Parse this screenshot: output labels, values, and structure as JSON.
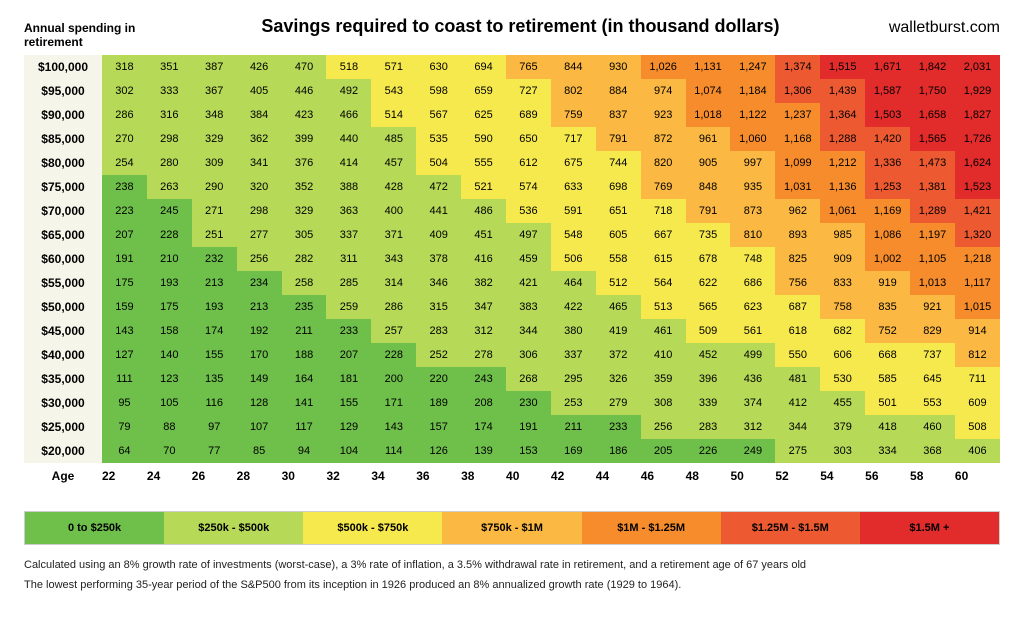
{
  "header": {
    "ylabel": "Annual spending in retirement",
    "title": "Savings required to coast to retirement (in thousand dollars)",
    "brand": "walletburst.com"
  },
  "axis": {
    "row_label": "Age",
    "ages": [
      22,
      24,
      26,
      28,
      30,
      32,
      34,
      36,
      38,
      40,
      42,
      44,
      46,
      48,
      50,
      52,
      54,
      56,
      58,
      60
    ],
    "spending": [
      100000,
      95000,
      90000,
      85000,
      80000,
      75000,
      70000,
      65000,
      60000,
      55000,
      50000,
      45000,
      40000,
      35000,
      30000,
      25000,
      20000
    ]
  },
  "values": [
    [
      318,
      351,
      387,
      426,
      470,
      518,
      571,
      630,
      694,
      765,
      844,
      930,
      1026,
      1131,
      1247,
      1374,
      1515,
      1671,
      1842,
      2031
    ],
    [
      302,
      333,
      367,
      405,
      446,
      492,
      543,
      598,
      659,
      727,
      802,
      884,
      974,
      1074,
      1184,
      1306,
      1439,
      1587,
      1750,
      1929
    ],
    [
      286,
      316,
      348,
      384,
      423,
      466,
      514,
      567,
      625,
      689,
      759,
      837,
      923,
      1018,
      1122,
      1237,
      1364,
      1503,
      1658,
      1827
    ],
    [
      270,
      298,
      329,
      362,
      399,
      440,
      485,
      535,
      590,
      650,
      717,
      791,
      872,
      961,
      1060,
      1168,
      1288,
      1420,
      1565,
      1726
    ],
    [
      254,
      280,
      309,
      341,
      376,
      414,
      457,
      504,
      555,
      612,
      675,
      744,
      820,
      905,
      997,
      1099,
      1212,
      1336,
      1473,
      1624
    ],
    [
      238,
      263,
      290,
      320,
      352,
      388,
      428,
      472,
      521,
      574,
      633,
      698,
      769,
      848,
      935,
      1031,
      1136,
      1253,
      1381,
      1523
    ],
    [
      223,
      245,
      271,
      298,
      329,
      363,
      400,
      441,
      486,
      536,
      591,
      651,
      718,
      791,
      873,
      962,
      1061,
      1169,
      1289,
      1421
    ],
    [
      207,
      228,
      251,
      277,
      305,
      337,
      371,
      409,
      451,
      497,
      548,
      605,
      667,
      735,
      810,
      893,
      985,
      1086,
      1197,
      1320
    ],
    [
      191,
      210,
      232,
      256,
      282,
      311,
      343,
      378,
      416,
      459,
      506,
      558,
      615,
      678,
      748,
      825,
      909,
      1002,
      1105,
      1218
    ],
    [
      175,
      193,
      213,
      234,
      258,
      285,
      314,
      346,
      382,
      421,
      464,
      512,
      564,
      622,
      686,
      756,
      833,
      919,
      1013,
      1117
    ],
    [
      159,
      175,
      193,
      213,
      235,
      259,
      286,
      315,
      347,
      383,
      422,
      465,
      513,
      565,
      623,
      687,
      758,
      835,
      921,
      1015
    ],
    [
      143,
      158,
      174,
      192,
      211,
      233,
      257,
      283,
      312,
      344,
      380,
      419,
      461,
      509,
      561,
      618,
      682,
      752,
      829,
      914
    ],
    [
      127,
      140,
      155,
      170,
      188,
      207,
      228,
      252,
      278,
      306,
      337,
      372,
      410,
      452,
      499,
      550,
      606,
      668,
      737,
      812
    ],
    [
      111,
      123,
      135,
      149,
      164,
      181,
      200,
      220,
      243,
      268,
      295,
      326,
      359,
      396,
      436,
      481,
      530,
      585,
      645,
      711
    ],
    [
      95,
      105,
      116,
      128,
      141,
      155,
      171,
      189,
      208,
      230,
      253,
      279,
      308,
      339,
      374,
      412,
      455,
      501,
      553,
      609
    ],
    [
      79,
      88,
      97,
      107,
      117,
      129,
      143,
      157,
      174,
      191,
      211,
      233,
      256,
      283,
      312,
      344,
      379,
      418,
      460,
      508
    ],
    [
      64,
      70,
      77,
      85,
      94,
      104,
      114,
      126,
      139,
      153,
      169,
      186,
      205,
      226,
      249,
      275,
      303,
      334,
      368,
      406
    ]
  ],
  "color_scale": {
    "thresholds": [
      250,
      500,
      750,
      1000,
      1250,
      1500
    ],
    "colors": [
      "#6fbf4b",
      "#b6d957",
      "#f6e94e",
      "#fbb843",
      "#f68c2c",
      "#ed5a32",
      "#e22b2b"
    ]
  },
  "legend": [
    {
      "label": "0 to $250k",
      "color": "#6fbf4b"
    },
    {
      "label": "$250k - $500k",
      "color": "#b6d957"
    },
    {
      "label": "$500k - $750k",
      "color": "#f6e94e"
    },
    {
      "label": "$750k - $1M",
      "color": "#fbb843"
    },
    {
      "label": "$1M - $1.25M",
      "color": "#f68c2c"
    },
    {
      "label": "$1.25M - $1.5M",
      "color": "#ed5a32"
    },
    {
      "label": "$1.5M +",
      "color": "#e22b2b"
    }
  ],
  "footnotes": [
    "Calculated using an 8% growth rate of investments (worst-case), a 3% rate of inflation, a 3.5% withdrawal rate in retirement, and a retirement age of 67 years old",
    "The lowest performing 35-year period of the S&P500 from its inception in 1926 produced an 8% annualized growth rate (1929 to 1964)."
  ]
}
